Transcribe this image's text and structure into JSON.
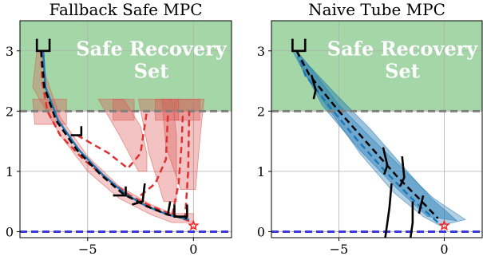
{
  "chart_data": [
    {
      "type": "line",
      "title": "Fallback Safe MPC",
      "xlim": [
        -8.2,
        1.8
      ],
      "ylim": [
        -0.1,
        3.5
      ],
      "x_ticks": [
        -5,
        0
      ],
      "x_tick_labels": [
        "−5",
        "0"
      ],
      "y_ticks": [
        0,
        1,
        2,
        3
      ],
      "y_tick_labels": [
        "0",
        "1",
        "2",
        "3"
      ],
      "grid": true,
      "safe_set": {
        "label": "Safe Recovery Set",
        "y_range": [
          2,
          3.5
        ],
        "color": "#a5d6a7"
      },
      "boundaries": [
        {
          "y": 2,
          "color": "#808080",
          "style": "dashed"
        },
        {
          "y": 0,
          "color": "#3b3bd9",
          "style": "dashed"
        }
      ],
      "goal": {
        "x": 0,
        "y": 0.1,
        "color": "#ff2020",
        "marker": "star"
      },
      "tubes": [
        {
          "color": "#d9534f",
          "opacity": 0.3,
          "upper": [
            [
              -7.2,
              3.0
            ],
            [
              -7.0,
              2.6
            ],
            [
              -6.3,
              1.9
            ],
            [
              -5.0,
              1.25
            ],
            [
              -3.5,
              0.75
            ],
            [
              -2.0,
              0.45
            ],
            [
              -1.0,
              0.3
            ],
            [
              0,
              0.3
            ]
          ],
          "lower": [
            [
              0,
              0.15
            ],
            [
              -1.0,
              0.15
            ],
            [
              -2.0,
              0.28
            ],
            [
              -3.5,
              0.55
            ],
            [
              -5.0,
              1.0
            ],
            [
              -6.3,
              1.6
            ],
            [
              -7.6,
              2.4
            ],
            [
              -7.4,
              3.0
            ]
          ]
        },
        {
          "color": "#d9534f",
          "opacity": 0.35,
          "upper": [
            [
              -4.5,
              2.2
            ],
            [
              -3.3,
              2.2
            ],
            [
              -2.5,
              1.75
            ],
            [
              -2.2,
              1.3
            ],
            [
              -2.2,
              1.0
            ]
          ],
          "lower": [
            [
              -2.6,
              1.0
            ],
            [
              -3.5,
              1.6
            ],
            [
              -4.5,
              2.2
            ]
          ]
        },
        {
          "color": "#d9534f",
          "opacity": 0.35,
          "upper": [
            [
              -2.6,
              2.2
            ],
            [
              -1.0,
              2.2
            ],
            [
              -0.8,
              1.6
            ],
            [
              -0.8,
              0.5
            ]
          ],
          "lower": [
            [
              -1.4,
              0.5
            ],
            [
              -2.1,
              1.3
            ],
            [
              -2.6,
              2.2
            ]
          ]
        },
        {
          "color": "#d9534f",
          "opacity": 0.35,
          "upper": [
            [
              -1.5,
              2.2
            ],
            [
              0.5,
              2.2
            ],
            [
              0.3,
              1.5
            ],
            [
              0.1,
              0.7
            ]
          ],
          "lower": [
            [
              -0.6,
              0.7
            ],
            [
              -1.3,
              1.4
            ],
            [
              -1.5,
              2.2
            ]
          ]
        },
        {
          "color": "#d9534f",
          "opacity": 0.35,
          "upper": [
            [
              -7.6,
              2.2
            ],
            [
              -6.0,
              2.2
            ],
            [
              -6.0,
              1.78
            ]
          ],
          "lower": [
            [
              -7.5,
              1.78
            ],
            [
              -7.6,
              2.2
            ]
          ]
        },
        {
          "color": "#d9534f",
          "opacity": 0.35,
          "upper": [
            [
              -3.8,
              2.2
            ],
            [
              -2.8,
              2.2
            ],
            [
              -2.8,
              1.85
            ]
          ],
          "lower": [
            [
              -3.8,
              1.85
            ],
            [
              -3.8,
              2.2
            ]
          ]
        },
        {
          "color": "#d9534f",
          "opacity": 0.35,
          "upper": [
            [
              -1.8,
              2.2
            ],
            [
              -0.7,
              2.2
            ],
            [
              -0.7,
              1.85
            ]
          ],
          "lower": [
            [
              -1.8,
              1.85
            ],
            [
              -1.8,
              2.2
            ]
          ]
        },
        {
          "color": "#d9534f",
          "opacity": 0.35,
          "upper": [
            [
              -0.9,
              2.2
            ],
            [
              0.3,
              2.2
            ],
            [
              0.3,
              1.85
            ]
          ],
          "lower": [
            [
              -0.9,
              1.85
            ],
            [
              -0.9,
              2.2
            ]
          ]
        }
      ],
      "series": [
        {
          "color": "#e03030",
          "style": "dashed",
          "points": [
            [
              -7.2,
              3.0
            ],
            [
              -7.15,
              2.5
            ],
            [
              -6.9,
              2.0
            ],
            [
              -6.3,
              1.6
            ],
            [
              -5.2,
              1.2
            ],
            [
              -4.0,
              0.85
            ],
            [
              -3.0,
              0.6
            ],
            [
              -2.0,
              0.42
            ],
            [
              -1.0,
              0.28
            ],
            [
              0,
              0.15
            ]
          ]
        },
        {
          "color": "#e03030",
          "style": "dashed",
          "points": [
            [
              -5.5,
              1.6
            ],
            [
              -4.0,
              1.3
            ],
            [
              -3.1,
              1.05
            ],
            [
              -2.5,
              1.3
            ],
            [
              -2.2,
              2.0
            ]
          ]
        },
        {
          "color": "#e03030",
          "style": "dashed",
          "points": [
            [
              -2.5,
              0.6
            ],
            [
              -1.8,
              0.8
            ],
            [
              -1.3,
              1.2
            ],
            [
              -1.2,
              2.0
            ]
          ]
        },
        {
          "color": "#e03030",
          "style": "dashed",
          "points": [
            [
              -1.0,
              0.28
            ],
            [
              -0.7,
              0.8
            ],
            [
              -0.55,
              1.5
            ],
            [
              -0.5,
              2.0
            ]
          ]
        },
        {
          "color": "#e03030",
          "style": "dashed",
          "points": [
            [
              -0.4,
              0.2
            ],
            [
              -0.25,
              1.0
            ],
            [
              -0.2,
              2.0
            ]
          ]
        },
        {
          "color": "#1f77b4",
          "style": "solid",
          "points": [
            [
              -7.1,
              3.0
            ],
            [
              -7.0,
              2.4
            ],
            [
              -6.4,
              1.85
            ],
            [
              -5.4,
              1.35
            ],
            [
              -4.3,
              0.95
            ],
            [
              -3.2,
              0.62
            ],
            [
              -2.2,
              0.42
            ],
            [
              -1.2,
              0.28
            ],
            [
              -0.2,
              0.2
            ]
          ]
        },
        {
          "color": "#000000",
          "style": "dashed",
          "points": [
            [
              -7.2,
              3.0
            ],
            [
              -7.05,
              2.4
            ],
            [
              -6.5,
              1.85
            ],
            [
              -5.5,
              1.35
            ],
            [
              -4.4,
              0.95
            ],
            [
              -3.3,
              0.62
            ],
            [
              -2.2,
              0.42
            ],
            [
              -1.2,
              0.28
            ],
            [
              -0.3,
              0.22
            ]
          ]
        }
      ],
      "segments": [
        {
          "color": "#000000",
          "points": [
            [
              -7.4,
              3.2
            ],
            [
              -7.4,
              3.0
            ],
            [
              -6.8,
              3.0
            ],
            [
              -6.8,
              3.2
            ]
          ]
        },
        {
          "color": "#000000",
          "points": [
            [
              -5.3,
              1.75
            ],
            [
              -5.3,
              1.6
            ],
            [
              -5.8,
              1.6
            ]
          ]
        },
        {
          "color": "#000000",
          "points": [
            [
              -3.2,
              0.75
            ],
            [
              -3.2,
              0.6
            ],
            [
              -3.8,
              0.6
            ]
          ]
        },
        {
          "color": "#000000",
          "points": [
            [
              -2.3,
              0.8
            ],
            [
              -2.4,
              0.5
            ],
            [
              -2.9,
              0.45
            ]
          ]
        },
        {
          "color": "#000000",
          "points": [
            [
              -1.1,
              0.5
            ],
            [
              -1.2,
              0.3
            ]
          ]
        },
        {
          "color": "#000000",
          "points": [
            [
              -0.3,
              0.45
            ],
            [
              -0.3,
              0.25
            ],
            [
              -0.9,
              0.25
            ],
            [
              -0.9,
              0.45
            ]
          ]
        }
      ]
    },
    {
      "type": "line",
      "title": "Naive Tube MPC",
      "xlim": [
        -8.2,
        1.8
      ],
      "ylim": [
        -0.1,
        3.5
      ],
      "x_ticks": [
        -5,
        0
      ],
      "x_tick_labels": [
        "−5",
        "0"
      ],
      "y_ticks": [
        0,
        1,
        2,
        3
      ],
      "y_tick_labels": [
        "0",
        "1",
        "2",
        "3"
      ],
      "grid": true,
      "safe_set": {
        "label": "Safe Recovery Set",
        "y_range": [
          2,
          3.5
        ],
        "color": "#a5d6a7"
      },
      "boundaries": [
        {
          "y": 2,
          "color": "#808080",
          "style": "dashed"
        },
        {
          "y": 0,
          "color": "#3b3bd9",
          "style": "dashed"
        }
      ],
      "goal": {
        "x": 0,
        "y": 0.1,
        "color": "#ff2020",
        "marker": "star"
      },
      "tubes": [
        {
          "color": "#1f77b4",
          "opacity": 0.35,
          "upper": [
            [
              -7.0,
              3.0
            ],
            [
              -6.3,
              2.7
            ],
            [
              -5.0,
              2.1
            ],
            [
              -3.6,
              1.6
            ],
            [
              -2.0,
              1.05
            ],
            [
              -0.5,
              0.55
            ],
            [
              1.0,
              0.2
            ]
          ],
          "lower": [
            [
              1.0,
              0.2
            ],
            [
              -0.2,
              0.1
            ],
            [
              -1.0,
              0.25
            ],
            [
              -2.4,
              0.65
            ],
            [
              -4.0,
              1.3
            ],
            [
              -5.6,
              2.1
            ],
            [
              -6.6,
              2.6
            ],
            [
              -7.2,
              3.0
            ]
          ]
        },
        {
          "color": "#1f77b4",
          "opacity": 0.45,
          "upper": [
            [
              -6.8,
              2.9
            ],
            [
              -5.2,
              2.3
            ],
            [
              -3.5,
              1.7
            ],
            [
              -2.0,
              1.1
            ],
            [
              -0.6,
              0.55
            ],
            [
              0.6,
              0.18
            ]
          ],
          "lower": [
            [
              0.6,
              0.18
            ],
            [
              -0.8,
              0.25
            ],
            [
              -2.2,
              0.7
            ],
            [
              -4.0,
              1.35
            ],
            [
              -5.8,
              2.1
            ],
            [
              -7.0,
              2.9
            ]
          ]
        }
      ],
      "series": [
        {
          "color": "#1f77b4",
          "style": "dashed",
          "points": [
            [
              -7.0,
              3.0
            ],
            [
              -6.6,
              2.6
            ],
            [
              -5.5,
              2.1
            ],
            [
              -4.2,
              1.55
            ],
            [
              -2.8,
              1.0
            ],
            [
              -1.4,
              0.5
            ],
            [
              -0.2,
              0.12
            ]
          ]
        },
        {
          "color": "#000000",
          "style": "dashed",
          "points": [
            [
              -7.0,
              3.0
            ],
            [
              -6.4,
              2.6
            ],
            [
              -5.0,
              2.0
            ],
            [
              -3.6,
              1.45
            ],
            [
              -2.2,
              0.9
            ],
            [
              -1.2,
              0.55
            ],
            [
              -0.3,
              0.22
            ]
          ]
        }
      ],
      "segments": [
        {
          "color": "#000000",
          "points": [
            [
              -7.2,
              3.2
            ],
            [
              -7.2,
              3.0
            ],
            [
              -6.6,
              3.0
            ],
            [
              -6.6,
              3.2
            ]
          ]
        },
        {
          "color": "#000000",
          "points": [
            [
              -6.3,
              2.6
            ],
            [
              -6.1,
              2.35
            ],
            [
              -6.2,
              2.2
            ]
          ]
        },
        {
          "color": "#000000",
          "points": [
            [
              -2.9,
              1.4
            ],
            [
              -2.7,
              1.1
            ],
            [
              -2.85,
              0.95
            ]
          ]
        },
        {
          "color": "#000000",
          "points": [
            [
              -2.0,
              1.25
            ],
            [
              -1.9,
              0.9
            ],
            [
              -2.1,
              0.75
            ]
          ]
        },
        {
          "color": "#000000",
          "points": [
            [
              -2.5,
              0.8
            ],
            [
              -2.6,
              0.4
            ],
            [
              -2.8,
              -0.1
            ]
          ]
        },
        {
          "color": "#000000",
          "points": [
            [
              -1.5,
              0.5
            ],
            [
              -1.5,
              0.15
            ],
            [
              -1.6,
              -0.1
            ]
          ]
        },
        {
          "color": "#000000",
          "points": [
            [
              -1.0,
              0.6
            ],
            [
              -1.2,
              0.3
            ]
          ]
        }
      ]
    }
  ]
}
